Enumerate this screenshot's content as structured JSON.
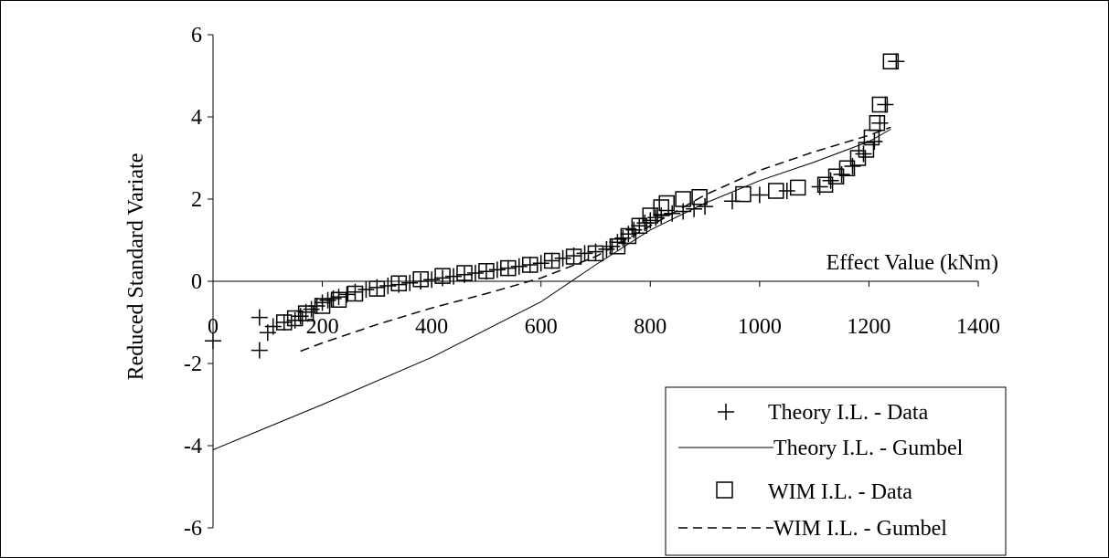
{
  "chart_data": {
    "type": "scatter",
    "title": "",
    "xlabel": "Effect Value (kNm)",
    "ylabel": "Reduced Standard Variate",
    "xlim": [
      0,
      1400
    ],
    "ylim": [
      -6,
      6
    ],
    "xticks": [
      0,
      200,
      400,
      600,
      800,
      1000,
      1200,
      1400
    ],
    "yticks": [
      -6,
      -4,
      -2,
      0,
      2,
      4,
      6
    ],
    "grid": false,
    "legend_position": "bottom-right",
    "series": [
      {
        "name": "Theory I.L. - Data",
        "kind": "markers",
        "marker": "plus",
        "points": [
          [
            0,
            -1.45
          ],
          [
            85,
            -0.88
          ],
          [
            85,
            -1.68
          ],
          [
            100,
            -1.25
          ],
          [
            110,
            -1.1
          ],
          [
            130,
            -1.0
          ],
          [
            150,
            -0.95
          ],
          [
            160,
            -0.85
          ],
          [
            170,
            -0.75
          ],
          [
            180,
            -0.68
          ],
          [
            190,
            -0.6
          ],
          [
            200,
            -0.52
          ],
          [
            210,
            -0.46
          ],
          [
            220,
            -0.42
          ],
          [
            230,
            -0.38
          ],
          [
            245,
            -0.32
          ],
          [
            260,
            -0.26
          ],
          [
            280,
            -0.2
          ],
          [
            300,
            -0.15
          ],
          [
            320,
            -0.11
          ],
          [
            340,
            -0.08
          ],
          [
            360,
            -0.04
          ],
          [
            380,
            0.0
          ],
          [
            400,
            0.04
          ],
          [
            420,
            0.08
          ],
          [
            440,
            0.12
          ],
          [
            460,
            0.16
          ],
          [
            480,
            0.2
          ],
          [
            500,
            0.24
          ],
          [
            520,
            0.28
          ],
          [
            540,
            0.32
          ],
          [
            560,
            0.36
          ],
          [
            580,
            0.4
          ],
          [
            600,
            0.44
          ],
          [
            620,
            0.5
          ],
          [
            640,
            0.56
          ],
          [
            660,
            0.62
          ],
          [
            680,
            0.68
          ],
          [
            700,
            0.72
          ],
          [
            720,
            0.78
          ],
          [
            730,
            0.85
          ],
          [
            740,
            0.95
          ],
          [
            750,
            1.05
          ],
          [
            760,
            1.15
          ],
          [
            770,
            1.25
          ],
          [
            780,
            1.35
          ],
          [
            790,
            1.42
          ],
          [
            800,
            1.48
          ],
          [
            810,
            1.55
          ],
          [
            820,
            1.6
          ],
          [
            840,
            1.65
          ],
          [
            860,
            1.7
          ],
          [
            880,
            1.76
          ],
          [
            900,
            1.82
          ],
          [
            950,
            1.95
          ],
          [
            1000,
            2.1
          ],
          [
            1050,
            2.2
          ],
          [
            1110,
            2.3
          ],
          [
            1130,
            2.45
          ],
          [
            1150,
            2.6
          ],
          [
            1170,
            2.8
          ],
          [
            1190,
            3.1
          ],
          [
            1210,
            3.4
          ],
          [
            1220,
            3.85
          ],
          [
            1230,
            4.3
          ],
          [
            1250,
            5.35
          ]
        ]
      },
      {
        "name": "Theory I.L. - Gumbel",
        "kind": "line",
        "style": "solid",
        "points": [
          [
            0,
            -4.1
          ],
          [
            200,
            -3.0
          ],
          [
            400,
            -1.85
          ],
          [
            600,
            -0.5
          ],
          [
            700,
            0.4
          ],
          [
            800,
            1.25
          ],
          [
            900,
            1.9
          ],
          [
            1000,
            2.45
          ],
          [
            1100,
            2.9
          ],
          [
            1200,
            3.4
          ],
          [
            1240,
            3.7
          ]
        ]
      },
      {
        "name": "WIM I.L. - Data",
        "kind": "markers",
        "marker": "square",
        "points": [
          [
            130,
            -1.0
          ],
          [
            150,
            -0.9
          ],
          [
            170,
            -0.78
          ],
          [
            200,
            -0.6
          ],
          [
            230,
            -0.45
          ],
          [
            260,
            -0.3
          ],
          [
            300,
            -0.18
          ],
          [
            340,
            -0.05
          ],
          [
            380,
            0.05
          ],
          [
            420,
            0.13
          ],
          [
            460,
            0.2
          ],
          [
            500,
            0.25
          ],
          [
            540,
            0.32
          ],
          [
            580,
            0.4
          ],
          [
            620,
            0.5
          ],
          [
            660,
            0.6
          ],
          [
            700,
            0.68
          ],
          [
            740,
            0.85
          ],
          [
            760,
            1.1
          ],
          [
            780,
            1.35
          ],
          [
            800,
            1.6
          ],
          [
            820,
            1.8
          ],
          [
            830,
            1.9
          ],
          [
            860,
            2.0
          ],
          [
            890,
            2.05
          ],
          [
            970,
            2.12
          ],
          [
            1030,
            2.2
          ],
          [
            1070,
            2.28
          ],
          [
            1120,
            2.35
          ],
          [
            1140,
            2.55
          ],
          [
            1160,
            2.75
          ],
          [
            1180,
            3.0
          ],
          [
            1195,
            3.2
          ],
          [
            1205,
            3.5
          ],
          [
            1215,
            3.85
          ],
          [
            1220,
            4.3
          ],
          [
            1240,
            5.35
          ]
        ]
      },
      {
        "name": "WIM I.L. - Gumbel",
        "kind": "line",
        "style": "dashed",
        "points": [
          [
            160,
            -1.7
          ],
          [
            200,
            -1.5
          ],
          [
            300,
            -1.05
          ],
          [
            400,
            -0.65
          ],
          [
            500,
            -0.3
          ],
          [
            600,
            0.08
          ],
          [
            700,
            0.6
          ],
          [
            800,
            1.35
          ],
          [
            900,
            2.1
          ],
          [
            1000,
            2.7
          ],
          [
            1100,
            3.15
          ],
          [
            1200,
            3.55
          ],
          [
            1240,
            3.75
          ]
        ]
      }
    ]
  }
}
